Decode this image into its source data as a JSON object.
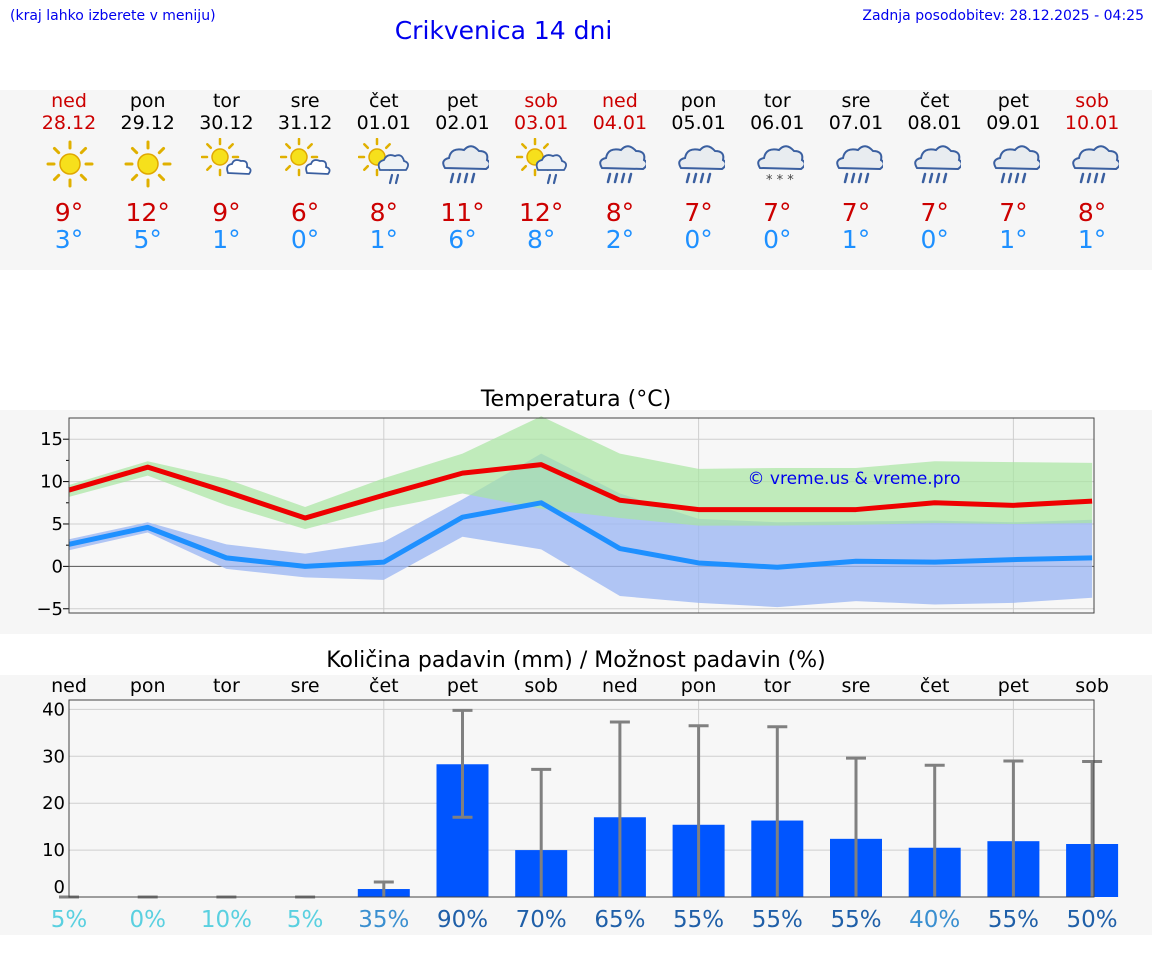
{
  "header": {
    "left_note": "(kraj lahko izberete v meniju)",
    "title": "Crikvenica 14 dni",
    "updated": "Zadnja posodobitev: 28.12.2025 - 04:25"
  },
  "colors": {
    "max_temp": "#ee0000",
    "min_temp": "#1e90ff",
    "max_band": "#a8e6a1",
    "min_band": "#9db8f2",
    "bar": "#0055ff",
    "errbar": "#808080",
    "weekend_text": "#cc0000"
  },
  "days": [
    {
      "name": "ned",
      "date": "28.12",
      "weekend": true,
      "icon": "sun-icon",
      "tmax": "9°",
      "tmin": "3°"
    },
    {
      "name": "pon",
      "date": "29.12",
      "weekend": false,
      "icon": "sun-icon",
      "tmax": "12°",
      "tmin": "5°"
    },
    {
      "name": "tor",
      "date": "30.12",
      "weekend": false,
      "icon": "sun-cloud-icon",
      "tmax": "9°",
      "tmin": "1°"
    },
    {
      "name": "sre",
      "date": "31.12",
      "weekend": false,
      "icon": "sun-cloud-icon",
      "tmax": "6°",
      "tmin": "0°"
    },
    {
      "name": "čet",
      "date": "01.01",
      "weekend": false,
      "icon": "sun-rain-icon",
      "tmax": "8°",
      "tmin": "1°"
    },
    {
      "name": "pet",
      "date": "02.01",
      "weekend": false,
      "icon": "rain-cloud-icon",
      "tmax": "11°",
      "tmin": "6°"
    },
    {
      "name": "sob",
      "date": "03.01",
      "weekend": true,
      "icon": "sun-rain-icon",
      "tmax": "12°",
      "tmin": "8°"
    },
    {
      "name": "ned",
      "date": "04.01",
      "weekend": true,
      "icon": "rain-cloud-icon",
      "tmax": "8°",
      "tmin": "2°"
    },
    {
      "name": "pon",
      "date": "05.01",
      "weekend": false,
      "icon": "rain-cloud-icon",
      "tmax": "7°",
      "tmin": "0°"
    },
    {
      "name": "tor",
      "date": "06.01",
      "weekend": false,
      "icon": "snow-cloud-icon",
      "tmax": "7°",
      "tmin": "0°"
    },
    {
      "name": "sre",
      "date": "07.01",
      "weekend": false,
      "icon": "rain-cloud-icon",
      "tmax": "7°",
      "tmin": "1°"
    },
    {
      "name": "čet",
      "date": "08.01",
      "weekend": false,
      "icon": "rain-cloud-icon",
      "tmax": "7°",
      "tmin": "0°"
    },
    {
      "name": "pet",
      "date": "09.01",
      "weekend": false,
      "icon": "rain-cloud-icon",
      "tmax": "7°",
      "tmin": "1°"
    },
    {
      "name": "sob",
      "date": "10.01",
      "weekend": true,
      "icon": "rain-cloud-icon",
      "tmax": "8°",
      "tmin": "1°"
    }
  ],
  "chart_data": [
    {
      "type": "line",
      "title": "Temperatura (°C)",
      "ylim": [
        -5.5,
        17.5
      ],
      "yticks": [
        -5,
        0,
        5,
        10,
        15
      ],
      "ytick_labels": [
        "−5",
        "0",
        "5",
        "10",
        "15"
      ],
      "grid": true,
      "watermark": "© vreme.us & vreme.pro",
      "x": [
        0,
        1,
        2,
        3,
        4,
        5,
        6,
        7,
        8,
        9,
        10,
        11,
        12,
        13
      ],
      "series": [
        {
          "name": "max",
          "values": [
            9,
            11.7,
            8.8,
            5.7,
            8.4,
            11,
            12,
            7.8,
            6.7,
            6.7,
            6.7,
            7.5,
            7.2,
            7.7
          ],
          "band_lo": [
            8.2,
            10.7,
            7.2,
            4.4,
            6.8,
            8.6,
            6.8,
            5.7,
            4.8,
            4.8,
            4.9,
            5.1,
            5.0,
            5.1
          ],
          "band_hi": [
            9.6,
            12.4,
            10.3,
            7.0,
            10.4,
            13.3,
            17.7,
            13.3,
            11.5,
            11.6,
            11.6,
            12.4,
            12.3,
            12.2
          ]
        },
        {
          "name": "min",
          "values": [
            2.6,
            4.6,
            1.0,
            0.0,
            0.5,
            5.8,
            7.5,
            2.1,
            0.4,
            -0.1,
            0.6,
            0.5,
            0.8,
            1.0
          ],
          "band_lo": [
            1.9,
            4.0,
            -0.3,
            -1.3,
            -1.6,
            3.5,
            2.0,
            -3.5,
            -4.3,
            -4.8,
            -4.1,
            -4.5,
            -4.3,
            -3.7
          ],
          "band_hi": [
            3.2,
            5.2,
            2.6,
            1.5,
            2.9,
            7.9,
            13.3,
            8.6,
            5.6,
            5.2,
            5.3,
            5.4,
            5.2,
            5.5
          ]
        }
      ]
    },
    {
      "type": "bar",
      "title": "Količina padavin (mm) / Možnost padavin (%)",
      "ylim": [
        0,
        42
      ],
      "yticks": [
        0,
        10,
        20,
        30,
        40
      ],
      "grid": true,
      "categories": [
        "ned",
        "pon",
        "tor",
        "sre",
        "čet",
        "pet",
        "sob",
        "ned",
        "pon",
        "tor",
        "sre",
        "čet",
        "pet",
        "sob"
      ],
      "values": [
        0,
        0,
        0,
        0,
        1.7,
        28.3,
        10,
        17,
        15.4,
        16.3,
        12.4,
        10.5,
        11.9,
        11.3
      ],
      "err_lo": [
        0,
        0,
        0,
        0,
        0,
        17,
        0,
        0,
        0,
        0,
        0,
        0,
        0,
        0
      ],
      "err_hi": [
        0,
        0,
        0,
        0,
        3.2,
        39.8,
        27.2,
        37.3,
        36.5,
        36.3,
        29.6,
        28.1,
        29.0,
        28.9
      ],
      "probability": [
        "5%",
        "0%",
        "10%",
        "5%",
        "35%",
        "90%",
        "70%",
        "65%",
        "55%",
        "55%",
        "55%",
        "40%",
        "55%",
        "50%"
      ],
      "probability_values": [
        5,
        0,
        10,
        5,
        35,
        90,
        70,
        65,
        55,
        55,
        55,
        40,
        55,
        50
      ]
    }
  ]
}
